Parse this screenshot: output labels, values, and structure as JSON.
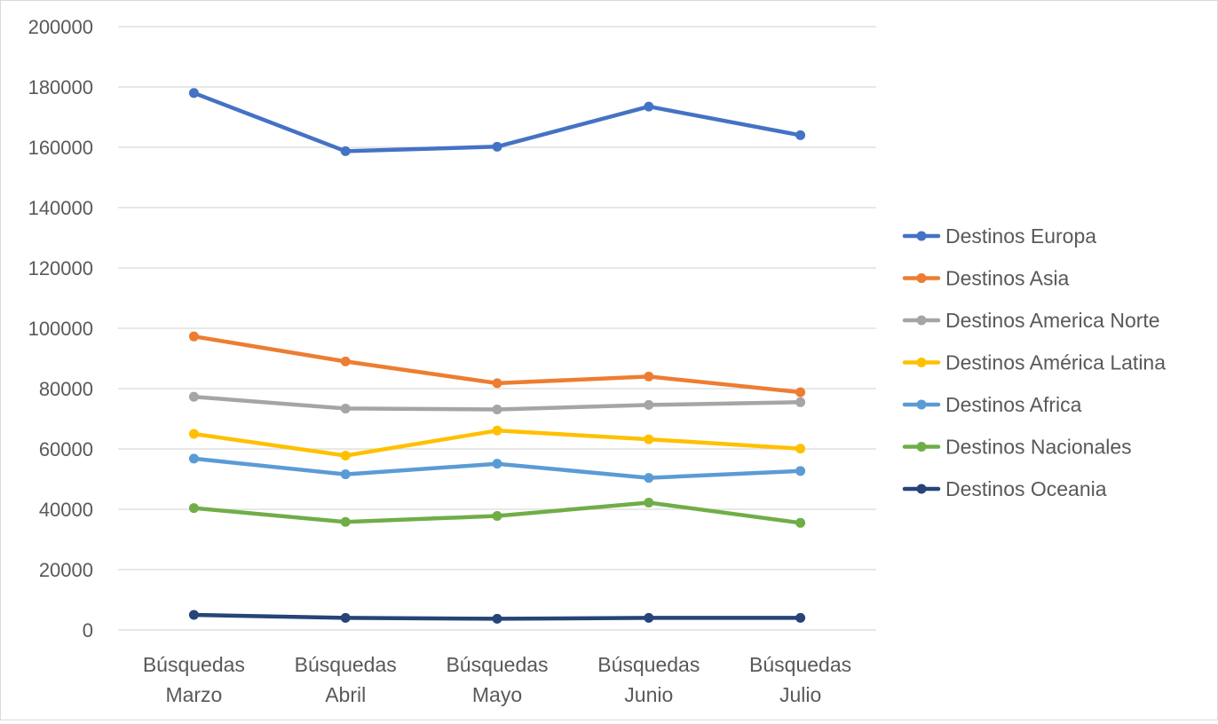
{
  "chart_data": {
    "type": "line",
    "title": "",
    "xlabel": "",
    "ylabel": "",
    "ylim": [
      0,
      200000
    ],
    "yticks": [
      0,
      20000,
      40000,
      60000,
      80000,
      100000,
      120000,
      140000,
      160000,
      180000,
      200000
    ],
    "grid": true,
    "legend_position": "right",
    "categories": [
      [
        "Búsquedas",
        "Marzo"
      ],
      [
        "Búsquedas",
        "Abril"
      ],
      [
        "Búsquedas",
        "Mayo"
      ],
      [
        "Búsquedas",
        "Junio"
      ],
      [
        "Búsquedas",
        "Julio"
      ]
    ],
    "series": [
      {
        "name": "Destinos Europa",
        "color": "#4472C4",
        "values": [
          178000,
          158700,
          160200,
          173500,
          164000
        ]
      },
      {
        "name": "Destinos Asia",
        "color": "#ED7D31",
        "values": [
          97300,
          89000,
          81800,
          84000,
          78800
        ]
      },
      {
        "name": "Destinos America Norte",
        "color": "#A5A5A5",
        "values": [
          77300,
          73400,
          73100,
          74600,
          75500
        ]
      },
      {
        "name": "Destinos América Latina",
        "color": "#FFC000",
        "values": [
          65000,
          57800,
          66100,
          63200,
          60100
        ]
      },
      {
        "name": "Destinos Africa",
        "color": "#5B9BD5",
        "values": [
          56800,
          51600,
          55100,
          50400,
          52700
        ]
      },
      {
        "name": "Destinos Nacionales",
        "color": "#70AD47",
        "values": [
          40400,
          35800,
          37800,
          42200,
          35500
        ]
      },
      {
        "name": "Destinos Oceania",
        "color": "#264478",
        "values": [
          5000,
          4000,
          3700,
          4000,
          4000
        ]
      }
    ]
  }
}
